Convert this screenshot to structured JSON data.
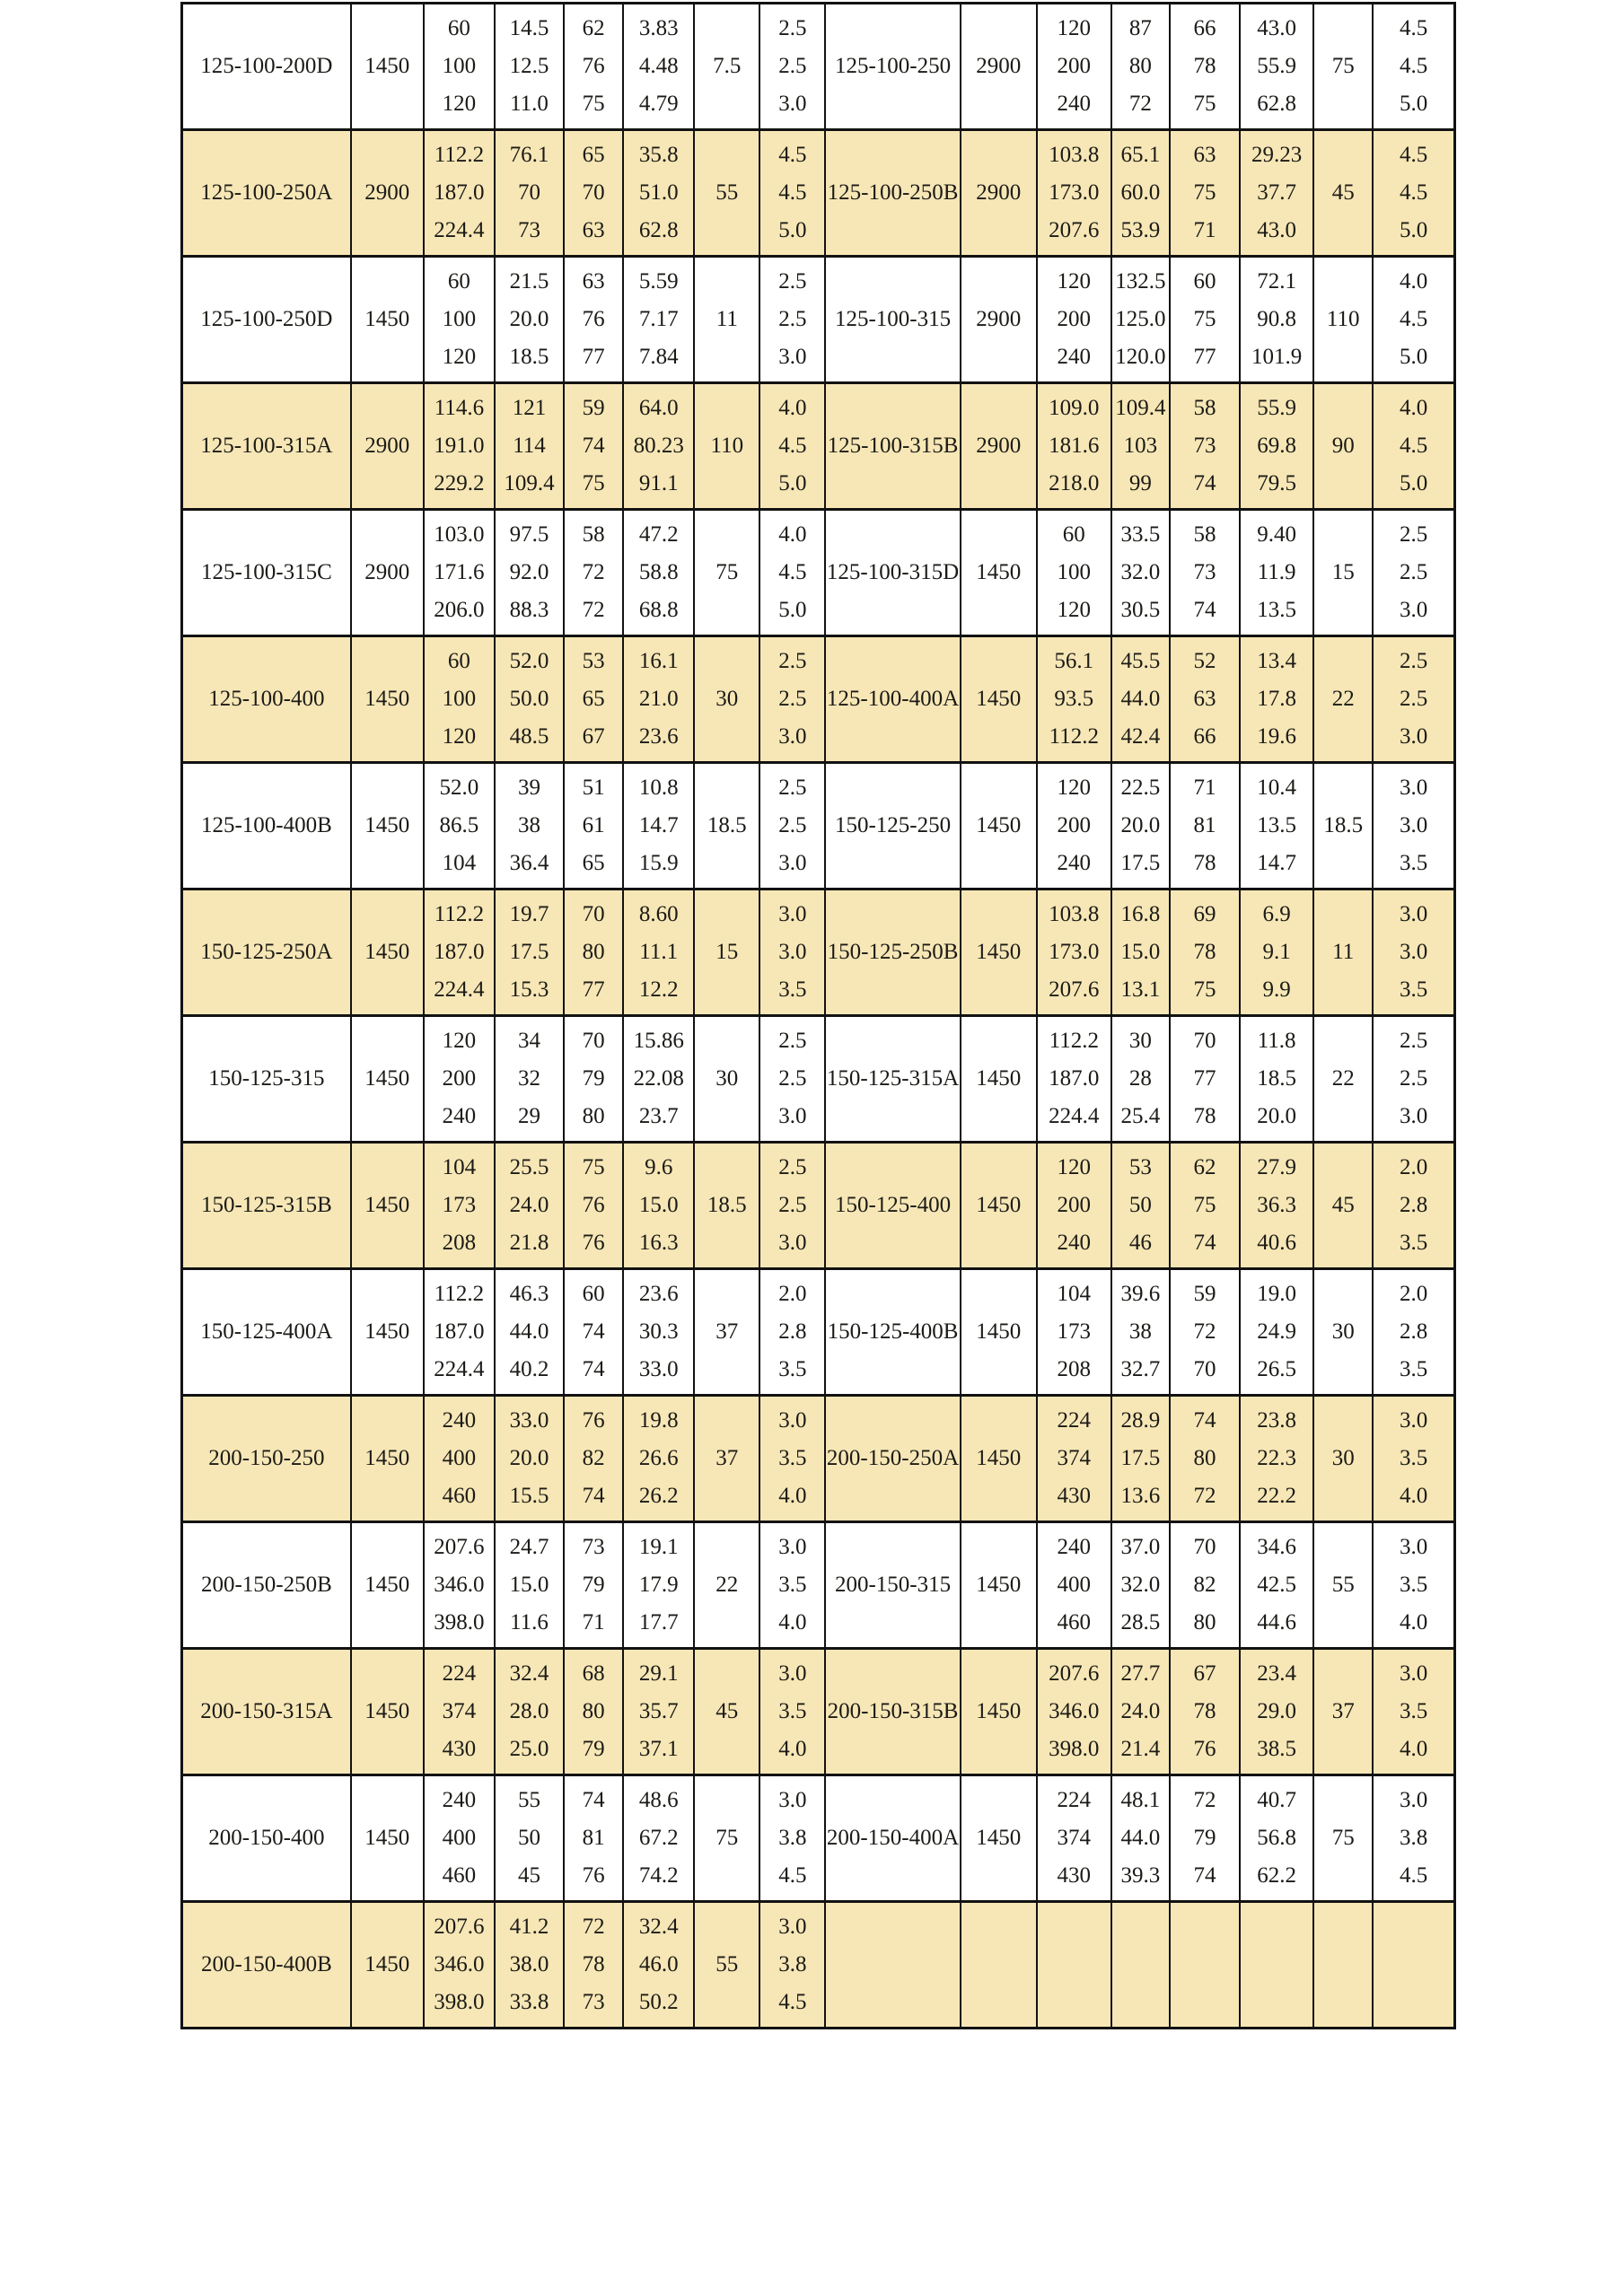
{
  "colors": {
    "stripe_yellow": "#F7E7B6",
    "stripe_white": "#FFFFFF",
    "border": "#121212",
    "text": "#1B1A16"
  },
  "table": {
    "columns_per_half": [
      "model",
      "speed",
      "flow",
      "head",
      "efficiency",
      "power",
      "motor_power",
      "npsh"
    ],
    "rows": [
      {
        "stripe": "white",
        "left": {
          "model": "125-100-200D",
          "speed": "1450",
          "flow": [
            "60",
            "100",
            "120"
          ],
          "head": [
            "14.5",
            "12.5",
            "11.0"
          ],
          "efficiency": [
            "62",
            "76",
            "75"
          ],
          "power": [
            "3.83",
            "4.48",
            "4.79"
          ],
          "motor_power": "7.5",
          "npsh": [
            "2.5",
            "2.5",
            "3.0"
          ]
        },
        "right": {
          "model": "125-100-250",
          "speed": "2900",
          "flow": [
            "120",
            "200",
            "240"
          ],
          "head": [
            "87",
            "80",
            "72"
          ],
          "efficiency": [
            "66",
            "78",
            "75"
          ],
          "power": [
            "43.0",
            "55.9",
            "62.8"
          ],
          "motor_power": "75",
          "npsh": [
            "4.5",
            "4.5",
            "5.0"
          ]
        }
      },
      {
        "stripe": "yellow",
        "left": {
          "model": "125-100-250A",
          "speed": "2900",
          "flow": [
            "112.2",
            "187.0",
            "224.4"
          ],
          "head": [
            "76.1",
            "70",
            "73"
          ],
          "efficiency": [
            "65",
            "70",
            "63"
          ],
          "power": [
            "35.8",
            "51.0",
            "62.8"
          ],
          "motor_power": "55",
          "npsh": [
            "4.5",
            "4.5",
            "5.0"
          ]
        },
        "right": {
          "model": "125-100-250B",
          "speed": "2900",
          "flow": [
            "103.8",
            "173.0",
            "207.6"
          ],
          "head": [
            "65.1",
            "60.0",
            "53.9"
          ],
          "efficiency": [
            "63",
            "75",
            "71"
          ],
          "power": [
            "29.23",
            "37.7",
            "43.0"
          ],
          "motor_power": "45",
          "npsh": [
            "4.5",
            "4.5",
            "5.0"
          ]
        }
      },
      {
        "stripe": "white",
        "left": {
          "model": "125-100-250D",
          "speed": "1450",
          "flow": [
            "60",
            "100",
            "120"
          ],
          "head": [
            "21.5",
            "20.0",
            "18.5"
          ],
          "efficiency": [
            "63",
            "76",
            "77"
          ],
          "power": [
            "5.59",
            "7.17",
            "7.84"
          ],
          "motor_power": "11",
          "npsh": [
            "2.5",
            "2.5",
            "3.0"
          ]
        },
        "right": {
          "model": "125-100-315",
          "speed": "2900",
          "flow": [
            "120",
            "200",
            "240"
          ],
          "head": [
            "132.5",
            "125.0",
            "120.0"
          ],
          "efficiency": [
            "60",
            "75",
            "77"
          ],
          "power": [
            "72.1",
            "90.8",
            "101.9"
          ],
          "motor_power": "110",
          "npsh": [
            "4.0",
            "4.5",
            "5.0"
          ]
        }
      },
      {
        "stripe": "yellow",
        "left": {
          "model": "125-100-315A",
          "speed": "2900",
          "flow": [
            "114.6",
            "191.0",
            "229.2"
          ],
          "head": [
            "121",
            "114",
            "109.4"
          ],
          "efficiency": [
            "59",
            "74",
            "75"
          ],
          "power": [
            "64.0",
            "80.23",
            "91.1"
          ],
          "motor_power": "110",
          "npsh": [
            "4.0",
            "4.5",
            "5.0"
          ]
        },
        "right": {
          "model": "125-100-315B",
          "speed": "2900",
          "flow": [
            "109.0",
            "181.6",
            "218.0"
          ],
          "head": [
            "109.4",
            "103",
            "99"
          ],
          "efficiency": [
            "58",
            "73",
            "74"
          ],
          "power": [
            "55.9",
            "69.8",
            "79.5"
          ],
          "motor_power": "90",
          "npsh": [
            "4.0",
            "4.5",
            "5.0"
          ]
        }
      },
      {
        "stripe": "white",
        "left": {
          "model": "125-100-315C",
          "speed": "2900",
          "flow": [
            "103.0",
            "171.6",
            "206.0"
          ],
          "head": [
            "97.5",
            "92.0",
            "88.3"
          ],
          "efficiency": [
            "58",
            "72",
            "72"
          ],
          "power": [
            "47.2",
            "58.8",
            "68.8"
          ],
          "motor_power": "75",
          "npsh": [
            "4.0",
            "4.5",
            "5.0"
          ]
        },
        "right": {
          "model": "125-100-315D",
          "speed": "1450",
          "flow": [
            "60",
            "100",
            "120"
          ],
          "head": [
            "33.5",
            "32.0",
            "30.5"
          ],
          "efficiency": [
            "58",
            "73",
            "74"
          ],
          "power": [
            "9.40",
            "11.9",
            "13.5"
          ],
          "motor_power": "15",
          "npsh": [
            "2.5",
            "2.5",
            "3.0"
          ]
        }
      },
      {
        "stripe": "yellow",
        "left": {
          "model": "125-100-400",
          "speed": "1450",
          "flow": [
            "60",
            "100",
            "120"
          ],
          "head": [
            "52.0",
            "50.0",
            "48.5"
          ],
          "efficiency": [
            "53",
            "65",
            "67"
          ],
          "power": [
            "16.1",
            "21.0",
            "23.6"
          ],
          "motor_power": "30",
          "npsh": [
            "2.5",
            "2.5",
            "3.0"
          ]
        },
        "right": {
          "model": "125-100-400A",
          "speed": "1450",
          "flow": [
            "56.1",
            "93.5",
            "112.2"
          ],
          "head": [
            "45.5",
            "44.0",
            "42.4"
          ],
          "efficiency": [
            "52",
            "63",
            "66"
          ],
          "power": [
            "13.4",
            "17.8",
            "19.6"
          ],
          "motor_power": "22",
          "npsh": [
            "2.5",
            "2.5",
            "3.0"
          ]
        }
      },
      {
        "stripe": "white",
        "left": {
          "model": "125-100-400B",
          "speed": "1450",
          "flow": [
            "52.0",
            "86.5",
            "104"
          ],
          "head": [
            "39",
            "38",
            "36.4"
          ],
          "efficiency": [
            "51",
            "61",
            "65"
          ],
          "power": [
            "10.8",
            "14.7",
            "15.9"
          ],
          "motor_power": "18.5",
          "npsh": [
            "2.5",
            "2.5",
            "3.0"
          ]
        },
        "right": {
          "model": "150-125-250",
          "speed": "1450",
          "flow": [
            "120",
            "200",
            "240"
          ],
          "head": [
            "22.5",
            "20.0",
            "17.5"
          ],
          "efficiency": [
            "71",
            "81",
            "78"
          ],
          "power": [
            "10.4",
            "13.5",
            "14.7"
          ],
          "motor_power": "18.5",
          "npsh": [
            "3.0",
            "3.0",
            "3.5"
          ]
        }
      },
      {
        "stripe": "yellow",
        "left": {
          "model": "150-125-250A",
          "speed": "1450",
          "flow": [
            "112.2",
            "187.0",
            "224.4"
          ],
          "head": [
            "19.7",
            "17.5",
            "15.3"
          ],
          "efficiency": [
            "70",
            "80",
            "77"
          ],
          "power": [
            "8.60",
            "11.1",
            "12.2"
          ],
          "motor_power": "15",
          "npsh": [
            "3.0",
            "3.0",
            "3.5"
          ]
        },
        "right": {
          "model": "150-125-250B",
          "speed": "1450",
          "flow": [
            "103.8",
            "173.0",
            "207.6"
          ],
          "head": [
            "16.8",
            "15.0",
            "13.1"
          ],
          "efficiency": [
            "69",
            "78",
            "75"
          ],
          "power": [
            "6.9",
            "9.1",
            "9.9"
          ],
          "motor_power": "11",
          "npsh": [
            "3.0",
            "3.0",
            "3.5"
          ]
        }
      },
      {
        "stripe": "white",
        "left": {
          "model": "150-125-315",
          "speed": "1450",
          "flow": [
            "120",
            "200",
            "240"
          ],
          "head": [
            "34",
            "32",
            "29"
          ],
          "efficiency": [
            "70",
            "79",
            "80"
          ],
          "power": [
            "15.86",
            "22.08",
            "23.7"
          ],
          "motor_power": "30",
          "npsh": [
            "2.5",
            "2.5",
            "3.0"
          ]
        },
        "right": {
          "model": "150-125-315A",
          "speed": "1450",
          "flow": [
            "112.2",
            "187.0",
            "224.4"
          ],
          "head": [
            "30",
            "28",
            "25.4"
          ],
          "efficiency": [
            "70",
            "77",
            "78"
          ],
          "power": [
            "11.8",
            "18.5",
            "20.0"
          ],
          "motor_power": "22",
          "npsh": [
            "2.5",
            "2.5",
            "3.0"
          ]
        }
      },
      {
        "stripe": "yellow",
        "left": {
          "model": "150-125-315B",
          "speed": "1450",
          "flow": [
            "104",
            "173",
            "208"
          ],
          "head": [
            "25.5",
            "24.0",
            "21.8"
          ],
          "efficiency": [
            "75",
            "76",
            "76"
          ],
          "power": [
            "9.6",
            "15.0",
            "16.3"
          ],
          "motor_power": "18.5",
          "npsh": [
            "2.5",
            "2.5",
            "3.0"
          ]
        },
        "right": {
          "model": "150-125-400",
          "speed": "1450",
          "flow": [
            "120",
            "200",
            "240"
          ],
          "head": [
            "53",
            "50",
            "46"
          ],
          "efficiency": [
            "62",
            "75",
            "74"
          ],
          "power": [
            "27.9",
            "36.3",
            "40.6"
          ],
          "motor_power": "45",
          "npsh": [
            "2.0",
            "2.8",
            "3.5"
          ]
        }
      },
      {
        "stripe": "white",
        "left": {
          "model": "150-125-400A",
          "speed": "1450",
          "flow": [
            "112.2",
            "187.0",
            "224.4"
          ],
          "head": [
            "46.3",
            "44.0",
            "40.2"
          ],
          "efficiency": [
            "60",
            "74",
            "74"
          ],
          "power": [
            "23.6",
            "30.3",
            "33.0"
          ],
          "motor_power": "37",
          "npsh": [
            "2.0",
            "2.8",
            "3.5"
          ]
        },
        "right": {
          "model": "150-125-400B",
          "speed": "1450",
          "flow": [
            "104",
            "173",
            "208"
          ],
          "head": [
            "39.6",
            "38",
            "32.7"
          ],
          "efficiency": [
            "59",
            "72",
            "70"
          ],
          "power": [
            "19.0",
            "24.9",
            "26.5"
          ],
          "motor_power": "30",
          "npsh": [
            "2.0",
            "2.8",
            "3.5"
          ]
        }
      },
      {
        "stripe": "yellow",
        "left": {
          "model": "200-150-250",
          "speed": "1450",
          "flow": [
            "240",
            "400",
            "460"
          ],
          "head": [
            "33.0",
            "20.0",
            "15.5"
          ],
          "efficiency": [
            "76",
            "82",
            "74"
          ],
          "power": [
            "19.8",
            "26.6",
            "26.2"
          ],
          "motor_power": "37",
          "npsh": [
            "3.0",
            "3.5",
            "4.0"
          ]
        },
        "right": {
          "model": "200-150-250A",
          "speed": "1450",
          "flow": [
            "224",
            "374",
            "430"
          ],
          "head": [
            "28.9",
            "17.5",
            "13.6"
          ],
          "efficiency": [
            "74",
            "80",
            "72"
          ],
          "power": [
            "23.8",
            "22.3",
            "22.2"
          ],
          "motor_power": "30",
          "npsh": [
            "3.0",
            "3.5",
            "4.0"
          ]
        }
      },
      {
        "stripe": "white",
        "left": {
          "model": "200-150-250B",
          "speed": "1450",
          "flow": [
            "207.6",
            "346.0",
            "398.0"
          ],
          "head": [
            "24.7",
            "15.0",
            "11.6"
          ],
          "efficiency": [
            "73",
            "79",
            "71"
          ],
          "power": [
            "19.1",
            "17.9",
            "17.7"
          ],
          "motor_power": "22",
          "npsh": [
            "3.0",
            "3.5",
            "4.0"
          ]
        },
        "right": {
          "model": "200-150-315",
          "speed": "1450",
          "flow": [
            "240",
            "400",
            "460"
          ],
          "head": [
            "37.0",
            "32.0",
            "28.5"
          ],
          "efficiency": [
            "70",
            "82",
            "80"
          ],
          "power": [
            "34.6",
            "42.5",
            "44.6"
          ],
          "motor_power": "55",
          "npsh": [
            "3.0",
            "3.5",
            "4.0"
          ]
        }
      },
      {
        "stripe": "yellow",
        "left": {
          "model": "200-150-315A",
          "speed": "1450",
          "flow": [
            "224",
            "374",
            "430"
          ],
          "head": [
            "32.4",
            "28.0",
            "25.0"
          ],
          "efficiency": [
            "68",
            "80",
            "79"
          ],
          "power": [
            "29.1",
            "35.7",
            "37.1"
          ],
          "motor_power": "45",
          "npsh": [
            "3.0",
            "3.5",
            "4.0"
          ]
        },
        "right": {
          "model": "200-150-315B",
          "speed": "1450",
          "flow": [
            "207.6",
            "346.0",
            "398.0"
          ],
          "head": [
            "27.7",
            "24.0",
            "21.4"
          ],
          "efficiency": [
            "67",
            "78",
            "76"
          ],
          "power": [
            "23.4",
            "29.0",
            "38.5"
          ],
          "motor_power": "37",
          "npsh": [
            "3.0",
            "3.5",
            "4.0"
          ]
        }
      },
      {
        "stripe": "white",
        "left": {
          "model": "200-150-400",
          "speed": "1450",
          "flow": [
            "240",
            "400",
            "460"
          ],
          "head": [
            "55",
            "50",
            "45"
          ],
          "efficiency": [
            "74",
            "81",
            "76"
          ],
          "power": [
            "48.6",
            "67.2",
            "74.2"
          ],
          "motor_power": "75",
          "npsh": [
            "3.0",
            "3.8",
            "4.5"
          ]
        },
        "right": {
          "model": "200-150-400A",
          "speed": "1450",
          "flow": [
            "224",
            "374",
            "430"
          ],
          "head": [
            "48.1",
            "44.0",
            "39.3"
          ],
          "efficiency": [
            "72",
            "79",
            "74"
          ],
          "power": [
            "40.7",
            "56.8",
            "62.2"
          ],
          "motor_power": "75",
          "npsh": [
            "3.0",
            "3.8",
            "4.5"
          ]
        }
      },
      {
        "stripe": "yellow",
        "left": {
          "model": "200-150-400B",
          "speed": "1450",
          "flow": [
            "207.6",
            "346.0",
            "398.0"
          ],
          "head": [
            "41.2",
            "38.0",
            "33.8"
          ],
          "efficiency": [
            "72",
            "78",
            "73"
          ],
          "power": [
            "32.4",
            "46.0",
            "50.2"
          ],
          "motor_power": "55",
          "npsh": [
            "3.0",
            "3.8",
            "4.5"
          ]
        },
        "right": null
      }
    ]
  }
}
